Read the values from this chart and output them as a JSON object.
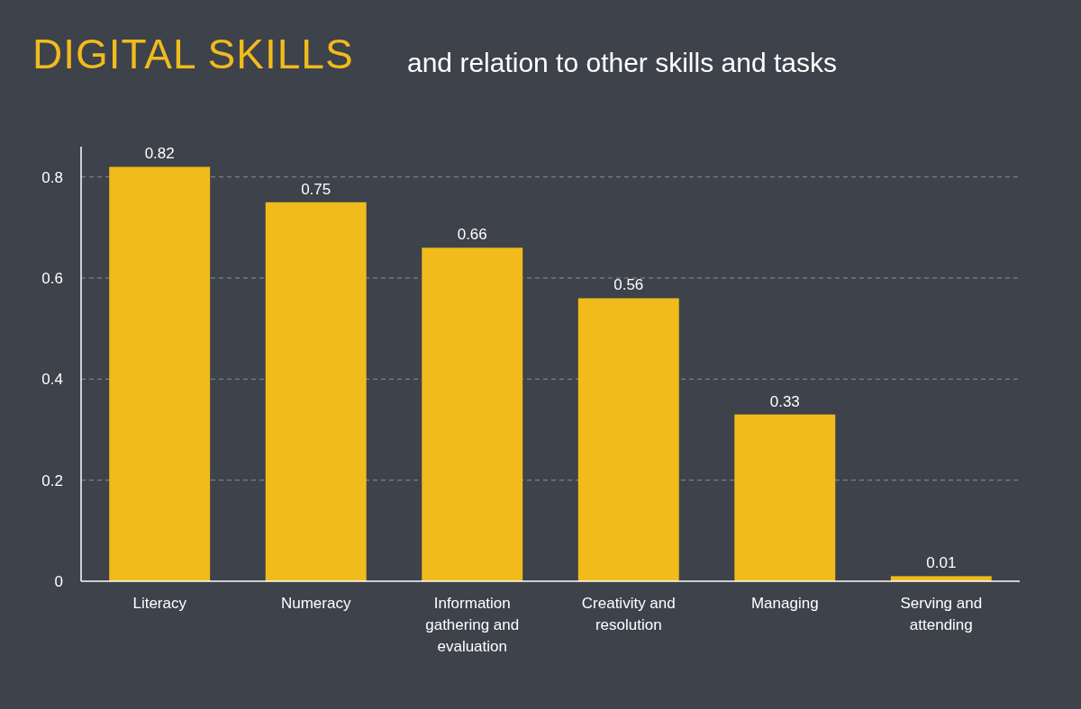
{
  "chart_data": {
    "type": "bar",
    "title": "DIGITAL SKILLS",
    "subtitle": "and relation to other skills and tasks",
    "categories": [
      "Literacy",
      "Numeracy",
      "Information gathering and evaluation",
      "Creativity and resolution",
      "Managing",
      "Serving and attending"
    ],
    "values": [
      0.82,
      0.75,
      0.66,
      0.56,
      0.33,
      0.01
    ],
    "color": "#f2bb1c",
    "ylim": [
      0,
      0.86
    ],
    "yticks": [
      0,
      0.2,
      0.4,
      0.6,
      0.8
    ],
    "grid": "y",
    "data_labels": true
  }
}
